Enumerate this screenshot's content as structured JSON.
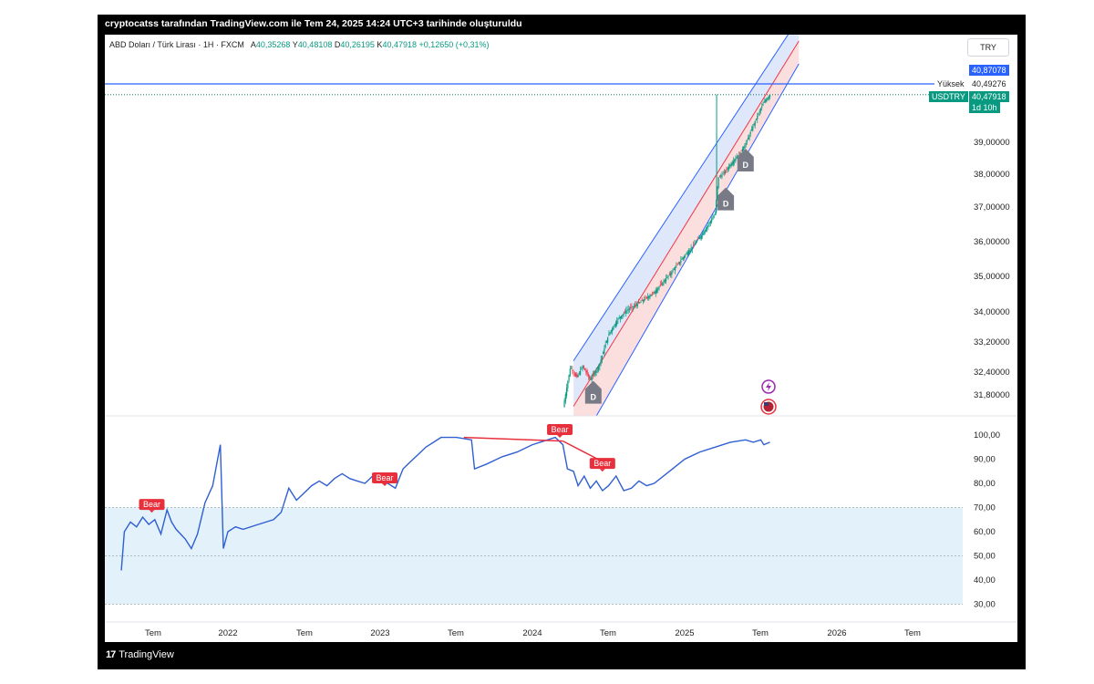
{
  "header": {
    "attribution": "cryptocatss tarafından TradingView.com ile Tem 24, 2025 14:24 UTC+3 tarihinde oluşturuldu"
  },
  "symbol_info": {
    "name": "ABD Doları / Türk Lirası · 1H · FXCM",
    "open_label": "A",
    "open": "40,35268",
    "high_label": "Y",
    "high": "40,48108",
    "low_label": "D",
    "low": "40,26195",
    "close_label": "K",
    "close": "40,47918",
    "change": "+0,12650 (+0,31%)"
  },
  "currency_button": "TRY",
  "footer": {
    "logo_text": "TradingView"
  },
  "colors": {
    "up": "#089981",
    "down": "#f23645",
    "line": "#2962ff",
    "rsi": "#2f5fd0",
    "bear": "#e8303d",
    "channel_upper": "#dbe6fb",
    "channel_lower": "#fbdcdc"
  },
  "price_tags": {
    "top_value": "40,87078",
    "yuksek_label": "Yüksek",
    "yuksek_value": "40,49276",
    "symbol_label": "USDTRY",
    "last_value": "40,47918",
    "countdown": "1d 10h"
  },
  "chart_data": [
    {
      "type": "candlestick",
      "title": "ABD Doları / Türk Lirası",
      "ylabel": "",
      "y_ticks": [
        "39,00000",
        "38,00000",
        "37,00000",
        "36,00000",
        "35,00000",
        "34,00000",
        "33,20000",
        "32,40000",
        "31,80000"
      ],
      "y_tick_values": [
        39.0,
        38.0,
        37.0,
        36.0,
        35.0,
        34.0,
        33.2,
        32.4,
        31.8
      ],
      "series": [
        {
          "values": [
            [
              2024.21,
              31.65
            ],
            [
              2024.25,
              32.55
            ],
            [
              2024.29,
              32.25
            ],
            [
              2024.33,
              32.55
            ],
            [
              2024.38,
              32.2
            ],
            [
              2024.44,
              32.6
            ],
            [
              2024.5,
              33.4
            ],
            [
              2024.56,
              33.8
            ],
            [
              2024.62,
              34.05
            ],
            [
              2024.7,
              34.25
            ],
            [
              2024.8,
              34.55
            ],
            [
              2024.9,
              35.05
            ],
            [
              2025.0,
              35.6
            ],
            [
              2025.05,
              35.85
            ],
            [
              2025.12,
              36.25
            ],
            [
              2025.2,
              36.8
            ],
            [
              2025.22,
              37.9
            ],
            [
              2025.25,
              38.0
            ],
            [
              2025.3,
              38.3
            ],
            [
              2025.36,
              38.65
            ],
            [
              2025.4,
              38.95
            ],
            [
              2025.44,
              39.4
            ],
            [
              2025.48,
              39.85
            ],
            [
              2025.52,
              40.25
            ],
            [
              2025.56,
              40.48
            ]
          ]
        }
      ],
      "spike_high": 40.49276,
      "horizontal_line": 40.87078,
      "markers": [
        "D",
        "D",
        "D"
      ]
    },
    {
      "type": "line",
      "title": "",
      "x_ticks": [
        "Tem",
        "2022",
        "Tem",
        "2023",
        "Tem",
        "2024",
        "Tem",
        "2025",
        "Tem",
        "2026",
        "Tem"
      ],
      "y_ticks": [
        "100,00",
        "90,00",
        "80,00",
        "70,00",
        "60,00",
        "50,00",
        "40,00",
        "30,00"
      ],
      "y_tick_values": [
        100,
        90,
        80,
        70,
        60,
        50,
        40,
        30
      ],
      "band": [
        30,
        70
      ],
      "series": [
        {
          "values": [
            [
              2021.3,
              44
            ],
            [
              2021.32,
              60
            ],
            [
              2021.36,
              64
            ],
            [
              2021.4,
              62
            ],
            [
              2021.44,
              66
            ],
            [
              2021.48,
              63
            ],
            [
              2021.52,
              65
            ],
            [
              2021.56,
              59
            ],
            [
              2021.6,
              69
            ],
            [
              2021.63,
              64
            ],
            [
              2021.66,
              61
            ],
            [
              2021.72,
              57
            ],
            [
              2021.76,
              53
            ],
            [
              2021.8,
              59
            ],
            [
              2021.85,
              72
            ],
            [
              2021.9,
              79
            ],
            [
              2021.95,
              96
            ],
            [
              2021.97,
              53
            ],
            [
              2022.0,
              60
            ],
            [
              2022.05,
              62
            ],
            [
              2022.1,
              61
            ],
            [
              2022.2,
              63
            ],
            [
              2022.3,
              65
            ],
            [
              2022.35,
              68
            ],
            [
              2022.4,
              78
            ],
            [
              2022.45,
              73
            ],
            [
              2022.5,
              76
            ],
            [
              2022.55,
              79
            ],
            [
              2022.6,
              81
            ],
            [
              2022.65,
              79
            ],
            [
              2022.7,
              82
            ],
            [
              2022.75,
              84
            ],
            [
              2022.8,
              82
            ],
            [
              2022.85,
              81
            ],
            [
              2022.9,
              80
            ],
            [
              2022.95,
              83
            ],
            [
              2023.0,
              82
            ],
            [
              2023.05,
              80
            ],
            [
              2023.1,
              78
            ],
            [
              2023.15,
              86
            ],
            [
              2023.2,
              89
            ],
            [
              2023.25,
              92
            ],
            [
              2023.3,
              95
            ],
            [
              2023.4,
              99
            ],
            [
              2023.5,
              99
            ],
            [
              2023.6,
              98
            ],
            [
              2023.62,
              86
            ],
            [
              2023.7,
              88
            ],
            [
              2023.8,
              91
            ],
            [
              2023.9,
              93
            ],
            [
              2024.0,
              96
            ],
            [
              2024.1,
              98
            ],
            [
              2024.15,
              99
            ],
            [
              2024.2,
              96
            ],
            [
              2024.23,
              86
            ],
            [
              2024.27,
              85
            ],
            [
              2024.3,
              79
            ],
            [
              2024.34,
              83
            ],
            [
              2024.38,
              78
            ],
            [
              2024.42,
              81
            ],
            [
              2024.46,
              77
            ],
            [
              2024.5,
              79
            ],
            [
              2024.55,
              83
            ],
            [
              2024.6,
              77
            ],
            [
              2024.65,
              78
            ],
            [
              2024.7,
              81
            ],
            [
              2024.75,
              79
            ],
            [
              2024.8,
              80
            ],
            [
              2024.9,
              85
            ],
            [
              2025.0,
              90
            ],
            [
              2025.1,
              93
            ],
            [
              2025.2,
              95
            ],
            [
              2025.3,
              97
            ],
            [
              2025.4,
              98
            ],
            [
              2025.45,
              97
            ],
            [
              2025.5,
              98
            ],
            [
              2025.52,
              96
            ],
            [
              2025.56,
              97
            ]
          ]
        }
      ],
      "bear_labels": [
        "Bear",
        "Bear",
        "Bear",
        "Bear"
      ]
    }
  ]
}
